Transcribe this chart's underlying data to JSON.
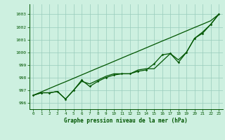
{
  "title": "Graphe pression niveau de la mer (hPa)",
  "bg_color": "#cdf0e0",
  "grid_color": "#99ccbb",
  "line_color": "#005500",
  "xlim": [
    -0.5,
    23.5
  ],
  "ylim": [
    995.5,
    1003.8
  ],
  "yticks": [
    996,
    997,
    998,
    999,
    1000,
    1001,
    1002,
    1003
  ],
  "xticks": [
    0,
    1,
    2,
    3,
    4,
    5,
    6,
    7,
    8,
    9,
    10,
    11,
    12,
    13,
    14,
    15,
    16,
    17,
    18,
    19,
    20,
    21,
    22,
    23
  ],
  "series_straight": [
    996.6,
    996.87,
    997.14,
    997.41,
    997.67,
    997.94,
    998.21,
    998.48,
    998.75,
    999.01,
    999.28,
    999.55,
    999.82,
    1000.08,
    1000.35,
    1000.62,
    1000.89,
    1001.15,
    1001.42,
    1001.69,
    1001.96,
    1002.22,
    1002.49,
    1003.0
  ],
  "series_marked": [
    996.6,
    996.8,
    996.8,
    996.9,
    996.3,
    997.0,
    997.8,
    997.3,
    997.7,
    998.0,
    998.2,
    998.3,
    998.3,
    998.5,
    998.6,
    999.1,
    999.8,
    999.9,
    999.2,
    1000.0,
    1001.1,
    1001.5,
    1002.2,
    1003.0
  ],
  "series_plain": [
    996.6,
    996.8,
    996.8,
    996.9,
    996.3,
    997.0,
    997.7,
    997.5,
    997.8,
    998.1,
    998.3,
    998.3,
    998.3,
    998.6,
    998.7,
    998.7,
    999.3,
    999.9,
    999.4,
    1000.0,
    1001.1,
    1001.6,
    1002.2,
    1003.0
  ]
}
